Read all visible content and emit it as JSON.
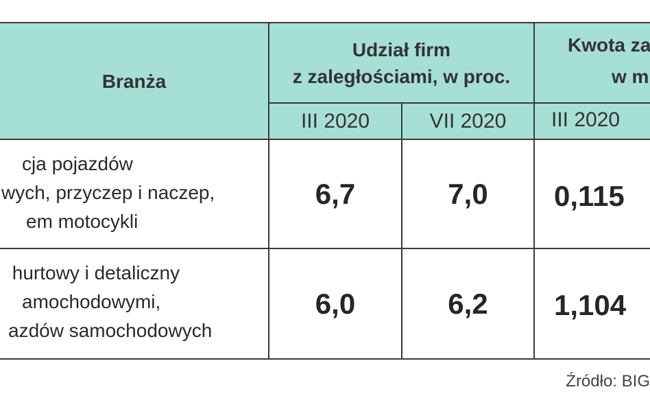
{
  "table": {
    "header": {
      "branza": "Branża",
      "group1_line1": "Udział firm",
      "group1_line2": "z zaległościami, w proc.",
      "group2_line1": "Kwota za",
      "group2_line2": "w m",
      "sub1": "III 2020",
      "sub2": "VII 2020",
      "sub3": "III 2020"
    },
    "rows": [
      {
        "label_lines": [
          "cja pojazdów",
          "wych, przyczep i naczep,",
          "em motocykli"
        ],
        "v1": "6,7",
        "v2": "7,0",
        "v3": "0,115"
      },
      {
        "label_lines": [
          " hurtowy i detaliczny",
          "amochodowymi,",
          "azdów samochodowych"
        ],
        "v1": "6,0",
        "v2": "6,2",
        "v3": "1,104"
      }
    ]
  },
  "source": "Źródło: BIG"
}
